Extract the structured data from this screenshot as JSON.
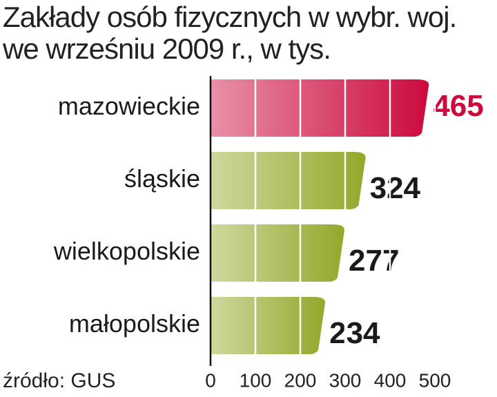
{
  "chart_data": {
    "type": "hbar",
    "title": "Zakłady osób fizycznych w wybr. woj. we wrześniu 2009 r., w tys.",
    "source": "źródło: GUS",
    "categories": [
      "mazowieckie",
      "śląskie",
      "wielkopolskie",
      "małopolskie"
    ],
    "values": [
      465,
      324,
      277,
      234
    ],
    "colors": [
      "#cc0a3c",
      "#94a82a",
      "#94a82a",
      "#94a82a"
    ],
    "label_colors": [
      "#cc0a3c",
      "#1a1a1a",
      "#1a1a1a",
      "#1a1a1a"
    ],
    "xlim": [
      0,
      500
    ],
    "xticks": [
      0,
      100,
      200,
      300,
      400,
      500
    ],
    "grid": true
  }
}
